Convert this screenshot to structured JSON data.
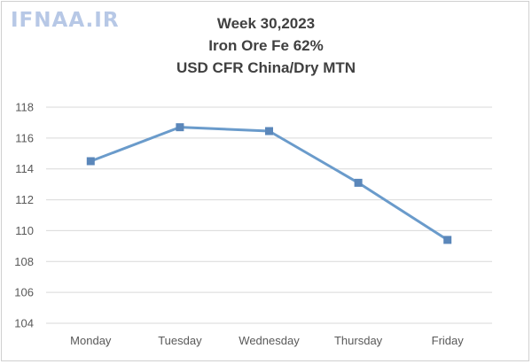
{
  "watermark": "IFNAA.IR",
  "chart_data": {
    "type": "line",
    "title": [
      "Week 30,2023",
      "Iron Ore Fe 62%",
      "USD CFR China/Dry MTN"
    ],
    "categories": [
      "Monday",
      "Tuesday",
      "Wednesday",
      "Thursday",
      "Friday"
    ],
    "series": [
      {
        "values": [
          114.5,
          116.7,
          116.45,
          113.1,
          109.4
        ]
      }
    ],
    "ylim": [
      104,
      118
    ],
    "yticks": [
      104,
      106,
      108,
      110,
      112,
      114,
      116,
      118
    ],
    "grid": true,
    "legend": "none",
    "line_color": "#6a9bcb",
    "marker_color": "#5b87ba",
    "grid_color": "#d9d9d9"
  }
}
